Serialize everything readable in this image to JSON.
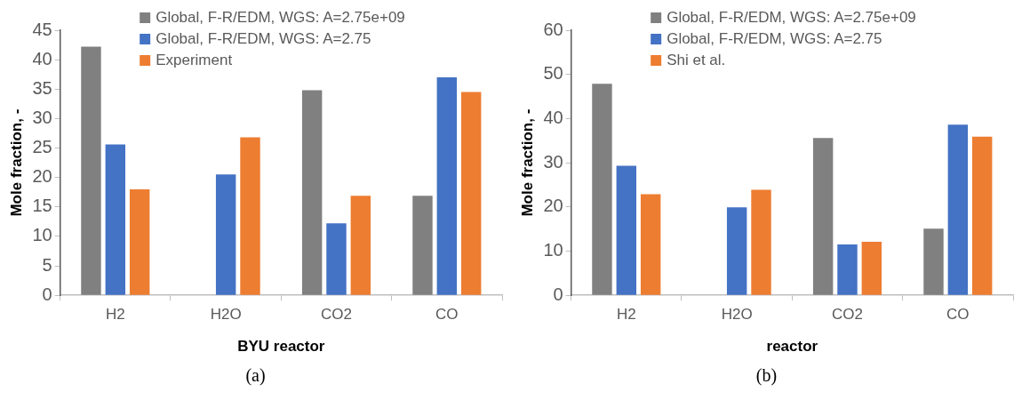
{
  "chart_data": [
    {
      "type": "bar",
      "xlabel": "BYU reactor",
      "ylabel": "Mole fraction, -",
      "categories": [
        "H2",
        "H2O",
        "CO2",
        "CO"
      ],
      "series": [
        {
          "name": "Global, F-R/EDM, WGS: A=2.75e+09",
          "color": "#808080",
          "values": [
            42.2,
            null,
            34.8,
            16.9
          ]
        },
        {
          "name": "Global, F-R/EDM, WGS: A=2.75",
          "color": "#4472c4",
          "values": [
            25.6,
            20.5,
            12.2,
            37.0
          ]
        },
        {
          "name": "Experiment",
          "color": "#ed7d31",
          "values": [
            18.0,
            26.8,
            16.9,
            34.5
          ]
        }
      ],
      "ylim": [
        0,
        45
      ],
      "yticks": [
        0,
        5,
        10,
        15,
        20,
        25,
        30,
        35,
        40,
        45
      ],
      "grid": false,
      "legend": "top right",
      "annotations": [
        "(a)"
      ]
    },
    {
      "type": "bar",
      "xlabel": "reactor",
      "ylabel": "Mole fraction, -",
      "categories": [
        "H2",
        "H2O",
        "CO2",
        "CO"
      ],
      "series": [
        {
          "name": "Global, F-R/EDM, WGS: A=2.75e+09",
          "color": "#808080",
          "values": [
            47.9,
            null,
            35.6,
            15.1
          ]
        },
        {
          "name": "Global, F-R/EDM, WGS: A=2.75",
          "color": "#4472c4",
          "values": [
            29.3,
            19.9,
            11.5,
            38.6
          ]
        },
        {
          "name": "Shi et al.",
          "color": "#ed7d31",
          "values": [
            22.9,
            23.9,
            12.1,
            35.9
          ]
        }
      ],
      "ylim": [
        0,
        60
      ],
      "yticks": [
        0,
        10,
        20,
        30,
        40,
        50,
        60
      ],
      "grid": false,
      "legend": "top right",
      "annotations": [
        "(b)"
      ]
    }
  ]
}
